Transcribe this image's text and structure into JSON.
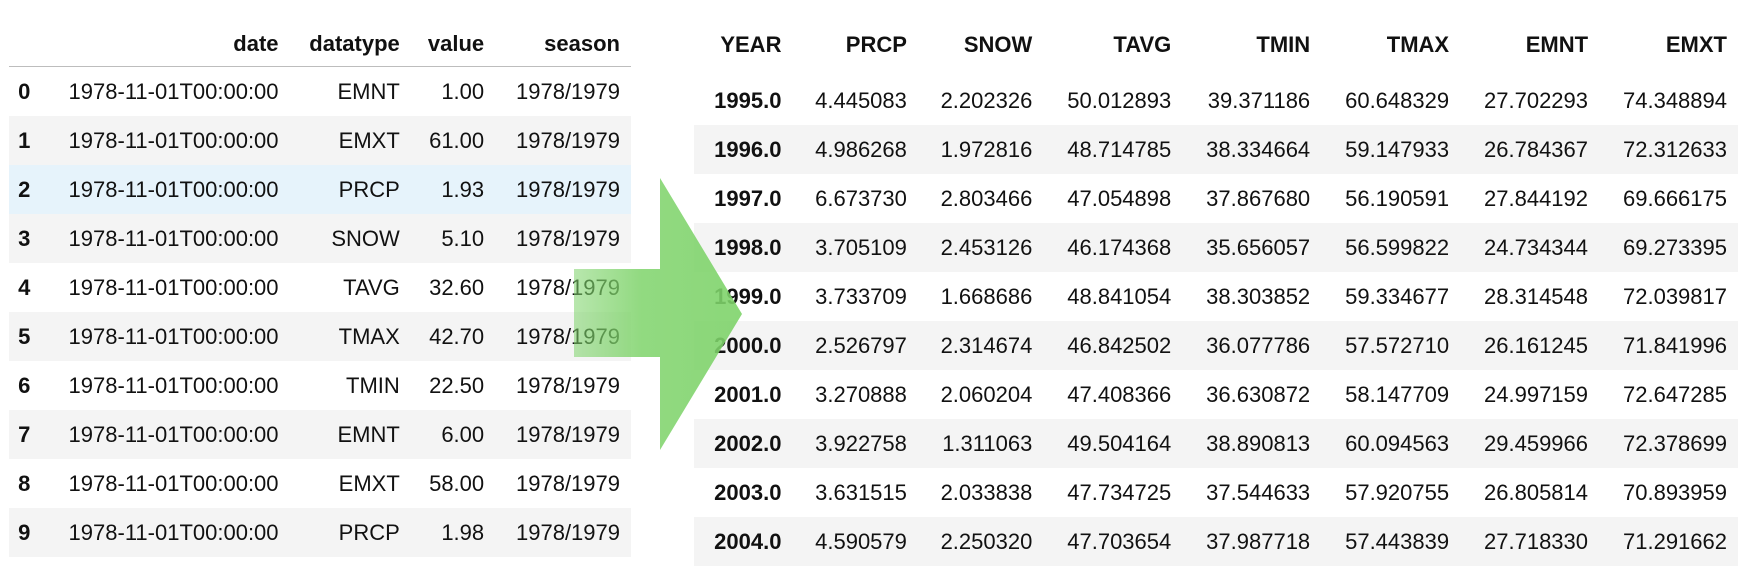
{
  "left_table": {
    "columns": [
      "",
      "date",
      "datatype",
      "value",
      "season"
    ],
    "rows": [
      {
        "idx": "0",
        "date": "1978-11-01T00:00:00",
        "datatype": "EMNT",
        "value": "1.00",
        "season": "1978/1979"
      },
      {
        "idx": "1",
        "date": "1978-11-01T00:00:00",
        "datatype": "EMXT",
        "value": "61.00",
        "season": "1978/1979"
      },
      {
        "idx": "2",
        "date": "1978-11-01T00:00:00",
        "datatype": "PRCP",
        "value": "1.93",
        "season": "1978/1979"
      },
      {
        "idx": "3",
        "date": "1978-11-01T00:00:00",
        "datatype": "SNOW",
        "value": "5.10",
        "season": "1978/1979"
      },
      {
        "idx": "4",
        "date": "1978-11-01T00:00:00",
        "datatype": "TAVG",
        "value": "32.60",
        "season": "1978/1979"
      },
      {
        "idx": "5",
        "date": "1978-11-01T00:00:00",
        "datatype": "TMAX",
        "value": "42.70",
        "season": "1978/1979"
      },
      {
        "idx": "6",
        "date": "1978-11-01T00:00:00",
        "datatype": "TMIN",
        "value": "22.50",
        "season": "1978/1979"
      },
      {
        "idx": "7",
        "date": "1978-11-01T00:00:00",
        "datatype": "EMNT",
        "value": "6.00",
        "season": "1978/1979"
      },
      {
        "idx": "8",
        "date": "1978-11-01T00:00:00",
        "datatype": "EMXT",
        "value": "58.00",
        "season": "1978/1979"
      },
      {
        "idx": "9",
        "date": "1978-11-01T00:00:00",
        "datatype": "PRCP",
        "value": "1.98",
        "season": "1978/1979"
      }
    ]
  },
  "right_table": {
    "columns": [
      "YEAR",
      "PRCP",
      "SNOW",
      "TAVG",
      "TMIN",
      "TMAX",
      "EMNT",
      "EMXT"
    ],
    "rows": [
      [
        "1995.0",
        "4.445083",
        "2.202326",
        "50.012893",
        "39.371186",
        "60.648329",
        "27.702293",
        "74.348894"
      ],
      [
        "1996.0",
        "4.986268",
        "1.972816",
        "48.714785",
        "38.334664",
        "59.147933",
        "26.784367",
        "72.312633"
      ],
      [
        "1997.0",
        "6.673730",
        "2.803466",
        "47.054898",
        "37.867680",
        "56.190591",
        "27.844192",
        "69.666175"
      ],
      [
        "1998.0",
        "3.705109",
        "2.453126",
        "46.174368",
        "35.656057",
        "56.599822",
        "24.734344",
        "69.273395"
      ],
      [
        "1999.0",
        "3.733709",
        "1.668686",
        "48.841054",
        "38.303852",
        "59.334677",
        "28.314548",
        "72.039817"
      ],
      [
        "2000.0",
        "2.526797",
        "2.314674",
        "46.842502",
        "36.077786",
        "57.572710",
        "26.161245",
        "71.841996"
      ],
      [
        "2001.0",
        "3.270888",
        "2.060204",
        "47.408366",
        "36.630872",
        "58.147709",
        "24.997159",
        "72.647285"
      ],
      [
        "2002.0",
        "3.922758",
        "1.311063",
        "49.504164",
        "38.890813",
        "60.094563",
        "29.459966",
        "72.378699"
      ],
      [
        "2003.0",
        "3.631515",
        "2.033838",
        "47.734725",
        "37.544633",
        "57.920755",
        "26.805814",
        "70.893959"
      ],
      [
        "2004.0",
        "4.590579",
        "2.250320",
        "47.703654",
        "37.987718",
        "57.443839",
        "27.718330",
        "71.291662"
      ]
    ]
  },
  "highlight_row_index": 2,
  "arrow": {
    "icon": "arrow-right-icon",
    "color": "#7ed36a"
  }
}
